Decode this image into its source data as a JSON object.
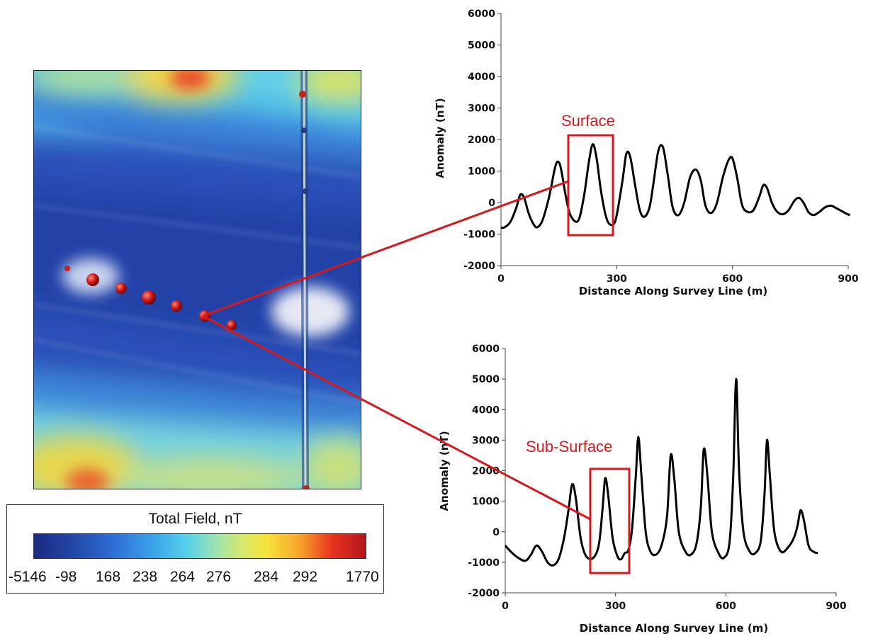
{
  "legend": {
    "title": "Total Field, nT",
    "ticks": [
      "-5146",
      "-98",
      "168",
      "238",
      "264",
      "276",
      "284",
      "292",
      "1770"
    ]
  },
  "annotations": {
    "surface_label": "Surface",
    "subsurface_label": "Sub-Surface",
    "highlight_color": "#d7191f"
  },
  "chart_data": [
    {
      "type": "line",
      "xlabel": "Distance Along Survey Line (m)",
      "ylabel": "Anomaly (nT)",
      "xlim": [
        0,
        900
      ],
      "ylim": [
        -2000,
        6000
      ],
      "xticks": [
        "0",
        "300",
        "600",
        "900"
      ],
      "yticks": [
        "6000",
        "5000",
        "4000",
        "3000",
        "2000",
        "1000",
        "0",
        "-1000",
        "-2000"
      ],
      "series": [
        {
          "x": [
            0,
            10,
            25,
            40,
            50,
            60,
            72,
            85,
            95,
            108,
            125,
            140,
            148,
            156,
            168,
            180,
            200,
            215,
            228,
            238,
            248,
            260,
            275,
            290,
            300,
            315,
            325,
            335,
            347,
            360,
            372,
            385,
            395,
            408,
            420,
            432,
            445,
            460,
            475,
            490,
            505,
            518,
            530,
            545,
            560,
            575,
            590,
            600,
            612,
            625,
            640,
            655,
            670,
            680,
            690,
            702,
            715,
            730,
            745,
            760,
            772,
            784,
            797,
            810,
            825,
            840,
            855,
            865,
            880,
            895,
            905
          ],
          "values": [
            -800,
            -780,
            -600,
            -150,
            250,
            150,
            -350,
            -700,
            -780,
            -550,
            200,
            1100,
            1300,
            1050,
            200,
            -400,
            -580,
            200,
            1300,
            1850,
            1400,
            300,
            -550,
            -700,
            -400,
            700,
            1550,
            1450,
            600,
            -250,
            -450,
            -150,
            600,
            1650,
            1750,
            900,
            -150,
            -400,
            0,
            800,
            1050,
            700,
            -100,
            -330,
            0,
            800,
            1350,
            1400,
            800,
            -80,
            -300,
            -230,
            200,
            550,
            450,
            0,
            -280,
            -370,
            -250,
            50,
            150,
            0,
            -300,
            -400,
            -300,
            -150,
            -100,
            -150,
            -250,
            -350,
            -400
          ]
        }
      ]
    },
    {
      "type": "line",
      "xlabel": "Distance Along Survey Line (m)",
      "ylabel": "Anomaly (nT)",
      "xlim": [
        0,
        900
      ],
      "ylim": [
        -2000,
        6000
      ],
      "xticks": [
        "0",
        "300",
        "600",
        "900"
      ],
      "yticks": [
        "6000",
        "5000",
        "4000",
        "3000",
        "2000",
        "1000",
        "0",
        "-1000",
        "-2000"
      ],
      "series": [
        {
          "x": [
            0,
            15,
            35,
            55,
            70,
            85,
            100,
            115,
            130,
            145,
            160,
            172,
            182,
            192,
            205,
            220,
            240,
            255,
            265,
            272,
            280,
            292,
            305,
            315,
            325,
            335,
            345,
            355,
            362,
            370,
            382,
            395,
            410,
            425,
            440,
            450,
            460,
            472,
            490,
            505,
            520,
            532,
            540,
            550,
            562,
            580,
            595,
            610,
            620,
            628,
            636,
            648,
            665,
            680,
            695,
            705,
            712,
            720,
            732,
            750,
            770,
            785,
            795,
            803,
            812,
            825,
            838,
            850
          ],
          "values": [
            -450,
            -650,
            -850,
            -950,
            -750,
            -450,
            -650,
            -1000,
            -1100,
            -900,
            -200,
            700,
            1550,
            1100,
            -200,
            -800,
            -850,
            -400,
            800,
            1750,
            1200,
            -200,
            -800,
            -900,
            -700,
            -600,
            100,
            1800,
            3100,
            1900,
            0,
            -650,
            -750,
            -450,
            500,
            2500,
            1700,
            0,
            -650,
            -750,
            -400,
            800,
            2700,
            1800,
            0,
            -700,
            -850,
            -350,
            1800,
            5000,
            2000,
            0,
            -650,
            -700,
            -300,
            1200,
            3000,
            1800,
            0,
            -650,
            -500,
            -200,
            200,
            700,
            400,
            -450,
            -650,
            -700
          ]
        }
      ]
    }
  ]
}
